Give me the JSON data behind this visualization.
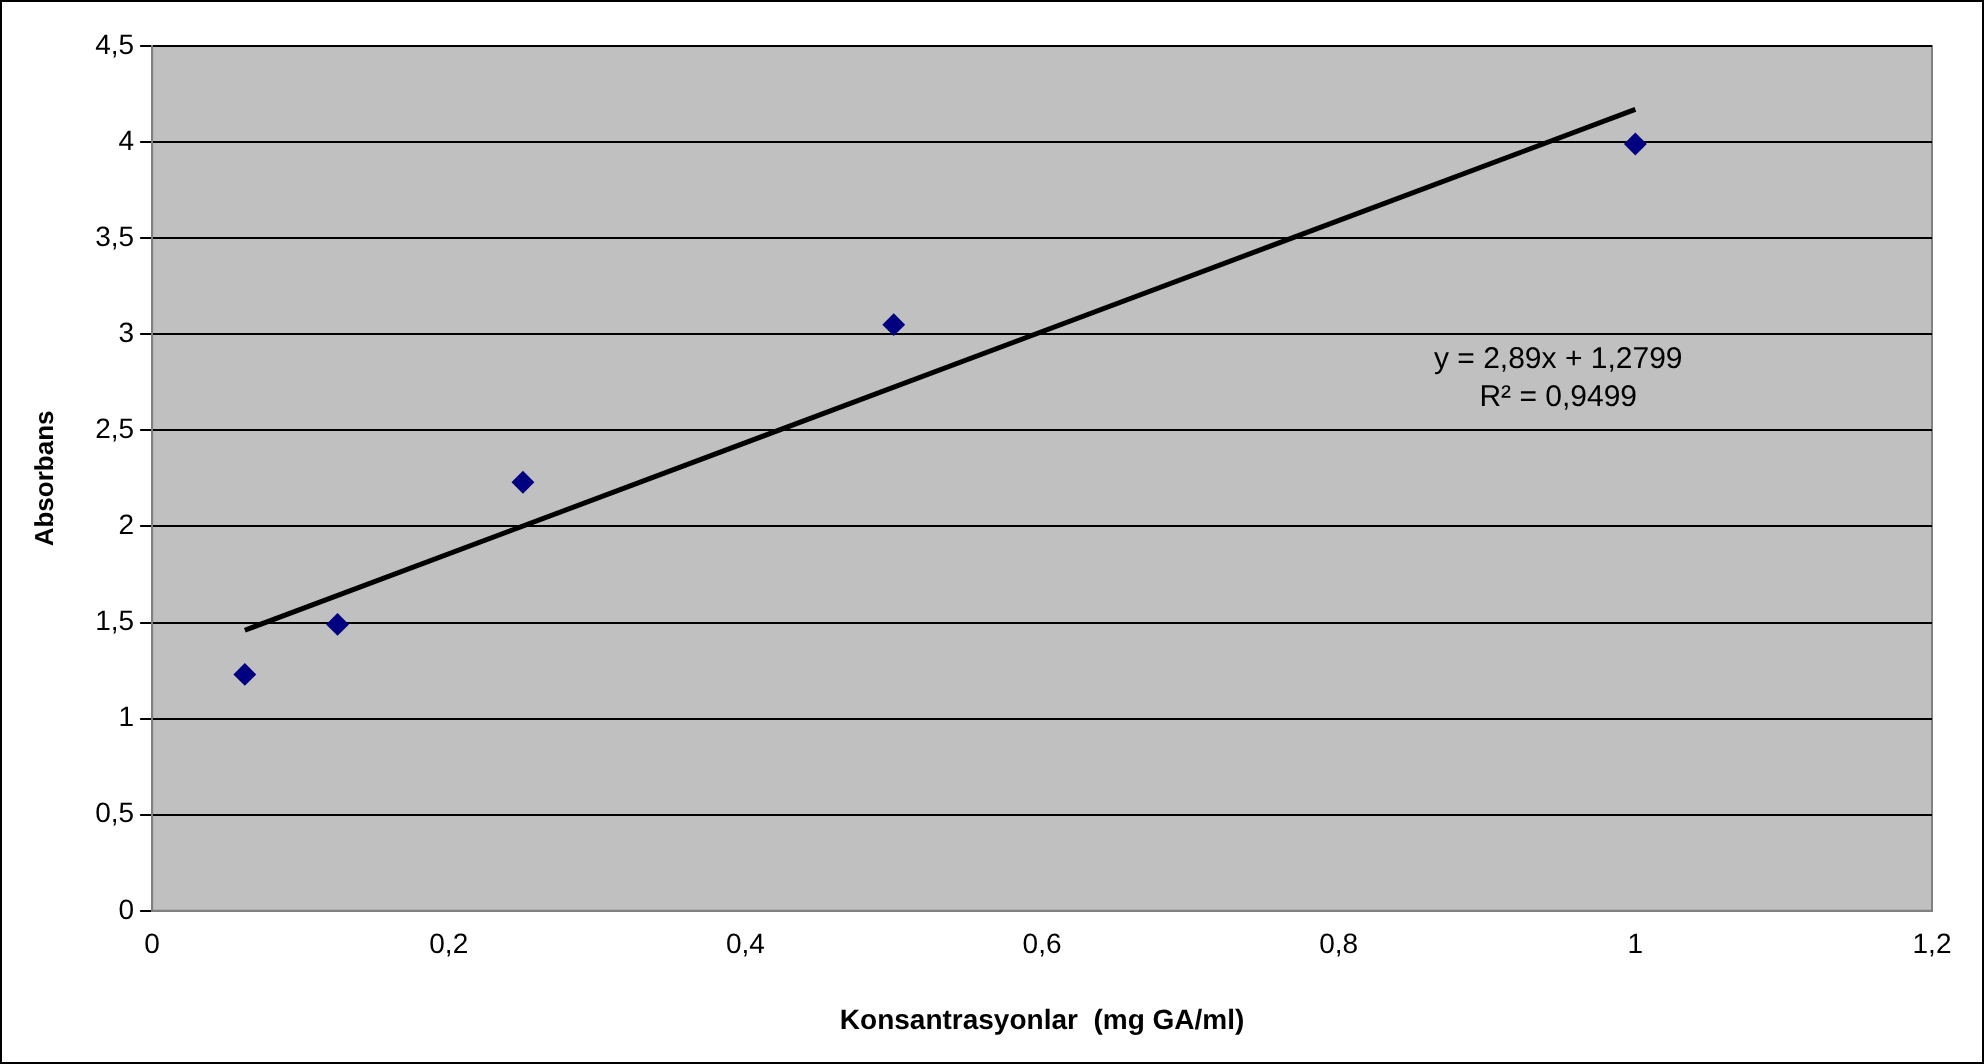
{
  "chart_data": {
    "type": "scatter",
    "xlabel": "Konsantrasyonlar  (mg GA/ml)",
    "ylabel": "Absorbans",
    "xlim": [
      0,
      1.2
    ],
    "xticks": [
      0,
      {
        "value": 0.2,
        "label": "0,2"
      },
      {
        "value": 0.4,
        "label": "0,4"
      },
      {
        "value": 0.6,
        "label": "0,6"
      },
      {
        "value": 0.8,
        "label": "0,8"
      },
      1,
      {
        "value": 1.2,
        "label": "1,2"
      }
    ],
    "ylim": [
      0,
      4.5
    ],
    "yticks": [
      0,
      {
        "value": 0.5,
        "label": "0,5"
      },
      1,
      {
        "value": 1.5,
        "label": "1,5"
      },
      2,
      {
        "value": 2.5,
        "label": "2,5"
      },
      3,
      {
        "value": 3.5,
        "label": "3,5"
      },
      4,
      {
        "value": 4.5,
        "label": "4,5"
      }
    ],
    "grid": "y",
    "legend": false,
    "series": [
      {
        "type": "scatter",
        "color": "#000080",
        "marker": "diamond",
        "x": [
          0.0625,
          0.125,
          0.25,
          0.5,
          1
        ],
        "values": [
          1.23,
          1.49,
          2.23,
          3.05,
          3.99
        ]
      },
      {
        "type": "line",
        "color": "#000000",
        "marker": "none",
        "x": [
          0.0625,
          1
        ],
        "values": [
          1.46,
          4.17
        ]
      }
    ],
    "annotations": [
      "y = 2,89x + 1,2799",
      "R² = 0,9499"
    ]
  }
}
